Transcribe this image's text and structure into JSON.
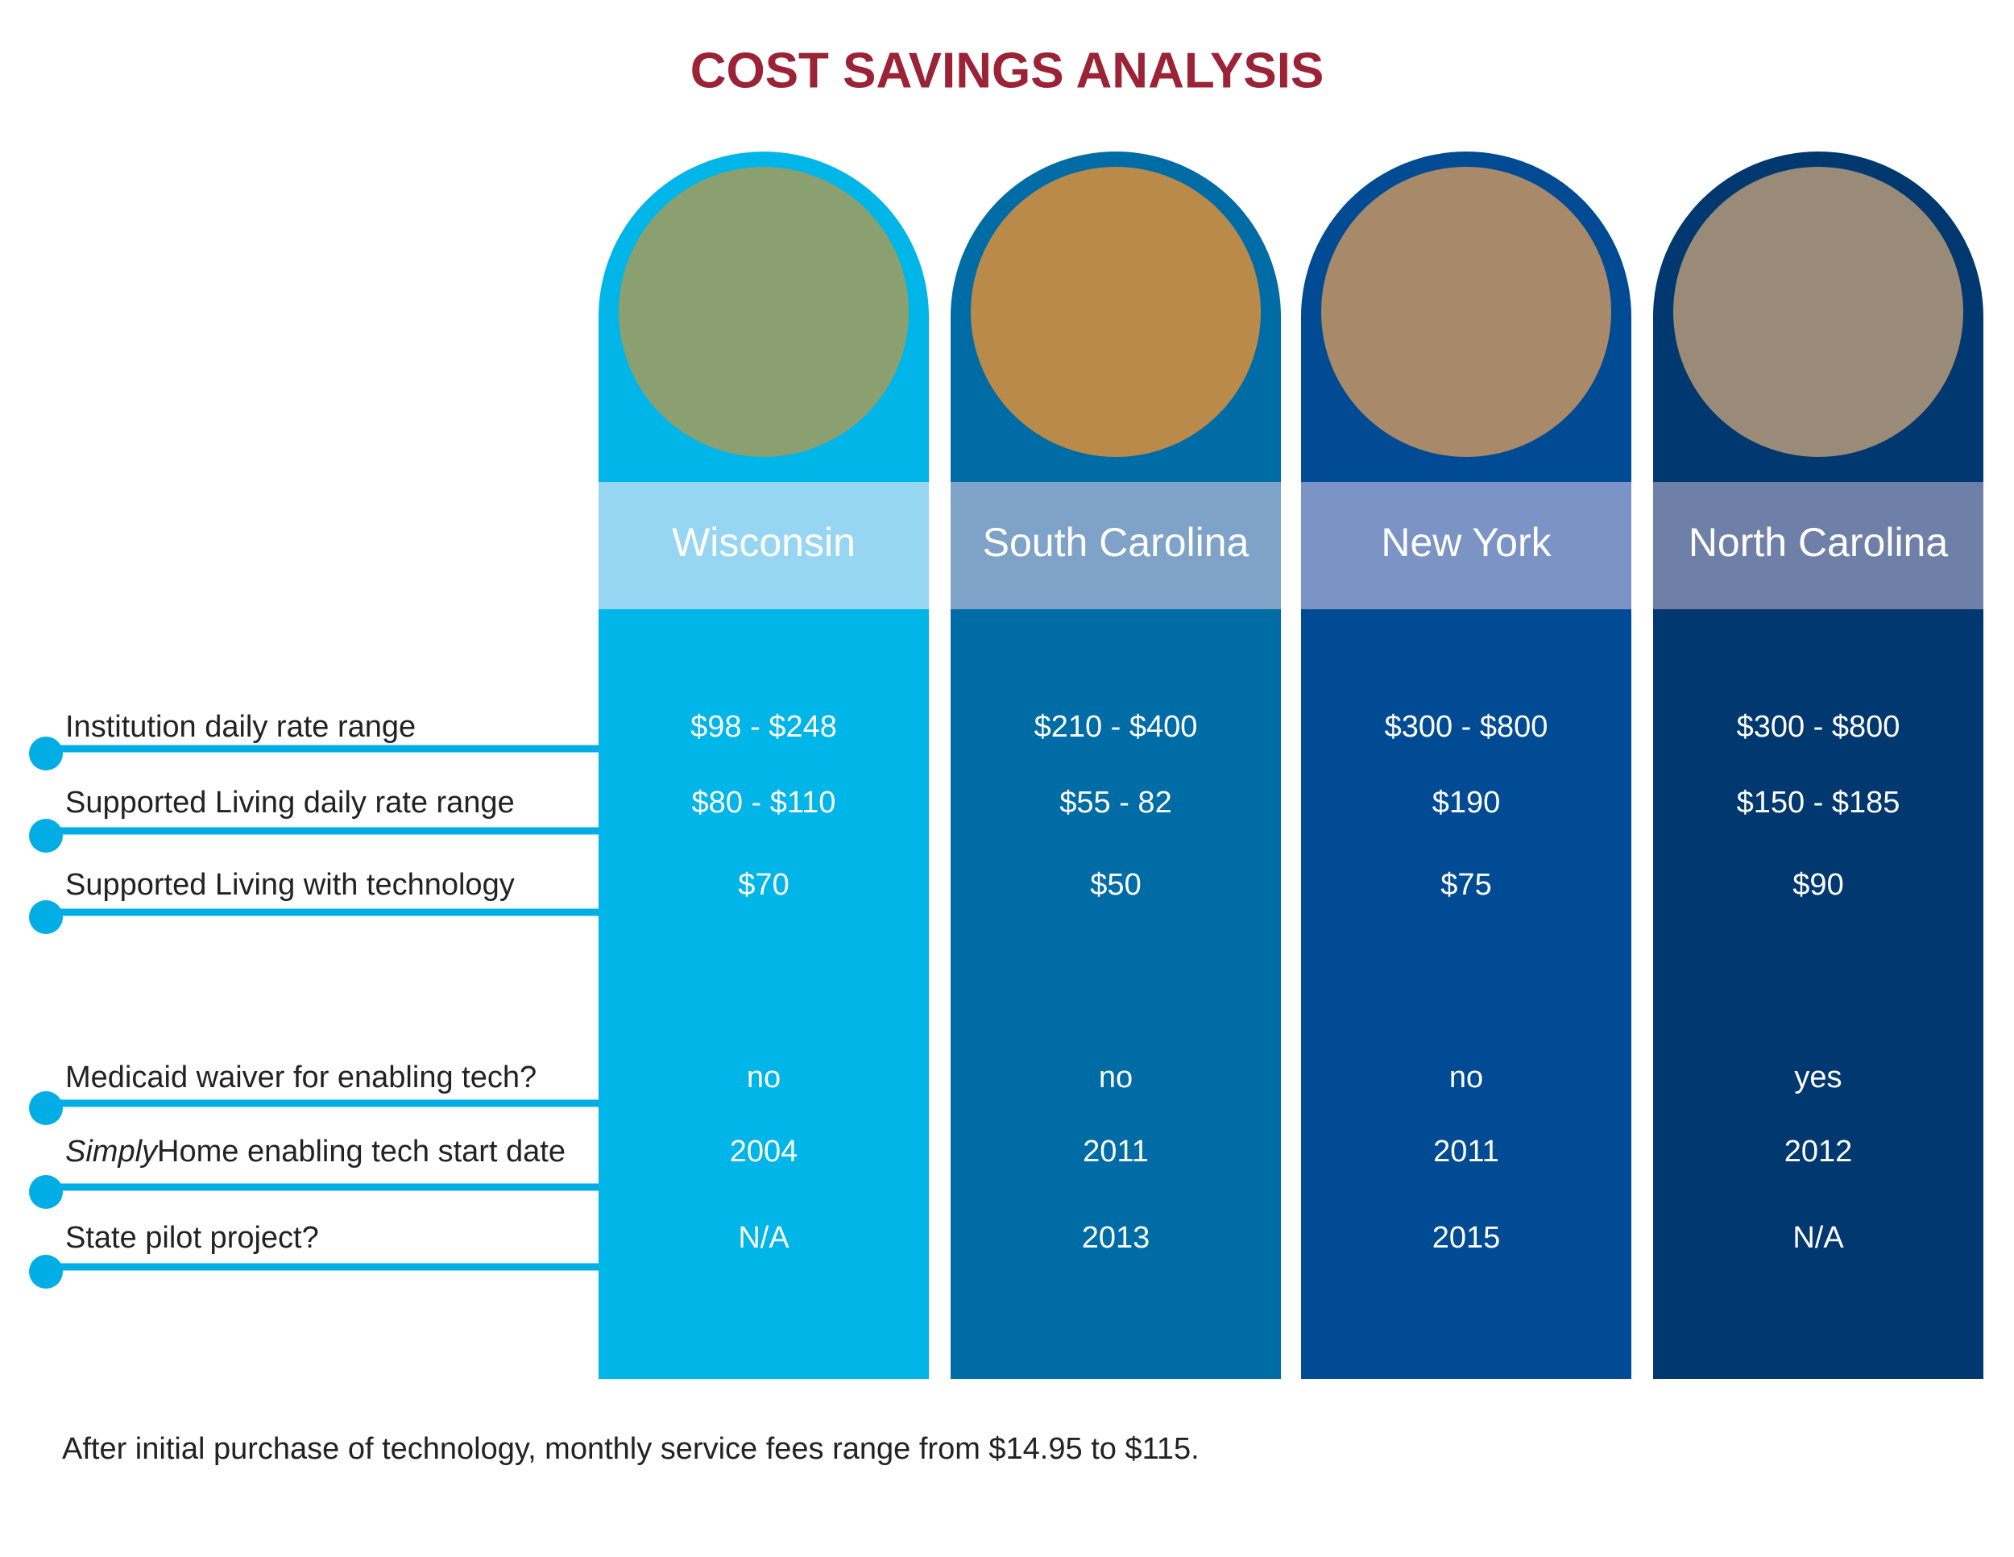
{
  "header": {
    "title": "COST SAVINGS ANALYSIS"
  },
  "table": {
    "row_labels": [
      "Institution daily rate range",
      "Supported Living daily rate range",
      "Supported Living with technology",
      "Medicaid waiver for enabling tech?",
      {
        "italic": "Simply",
        "rest": "Home enabling tech start date"
      },
      "State pilot project?"
    ],
    "columns": [
      {
        "state": "Wisconsin",
        "values": [
          "$98 - $248",
          "$80 - $110",
          "$70",
          "no",
          "2004",
          "N/A"
        ]
      },
      {
        "state": "South Carolina",
        "values": [
          "$210 - $400",
          "$55 - 82",
          "$50",
          "no",
          "2011",
          "2013"
        ]
      },
      {
        "state": "New York",
        "values": [
          "$300 - $800",
          "$190",
          "$75",
          "no",
          "2011",
          "2015"
        ]
      },
      {
        "state": "North Carolina",
        "values": [
          "$300 - $800",
          "$150 - $185",
          "$90",
          "yes",
          "2012",
          "N/A"
        ]
      }
    ]
  },
  "footnote": "After initial purchase of technology, monthly service fees range from $14.95 to $115."
}
